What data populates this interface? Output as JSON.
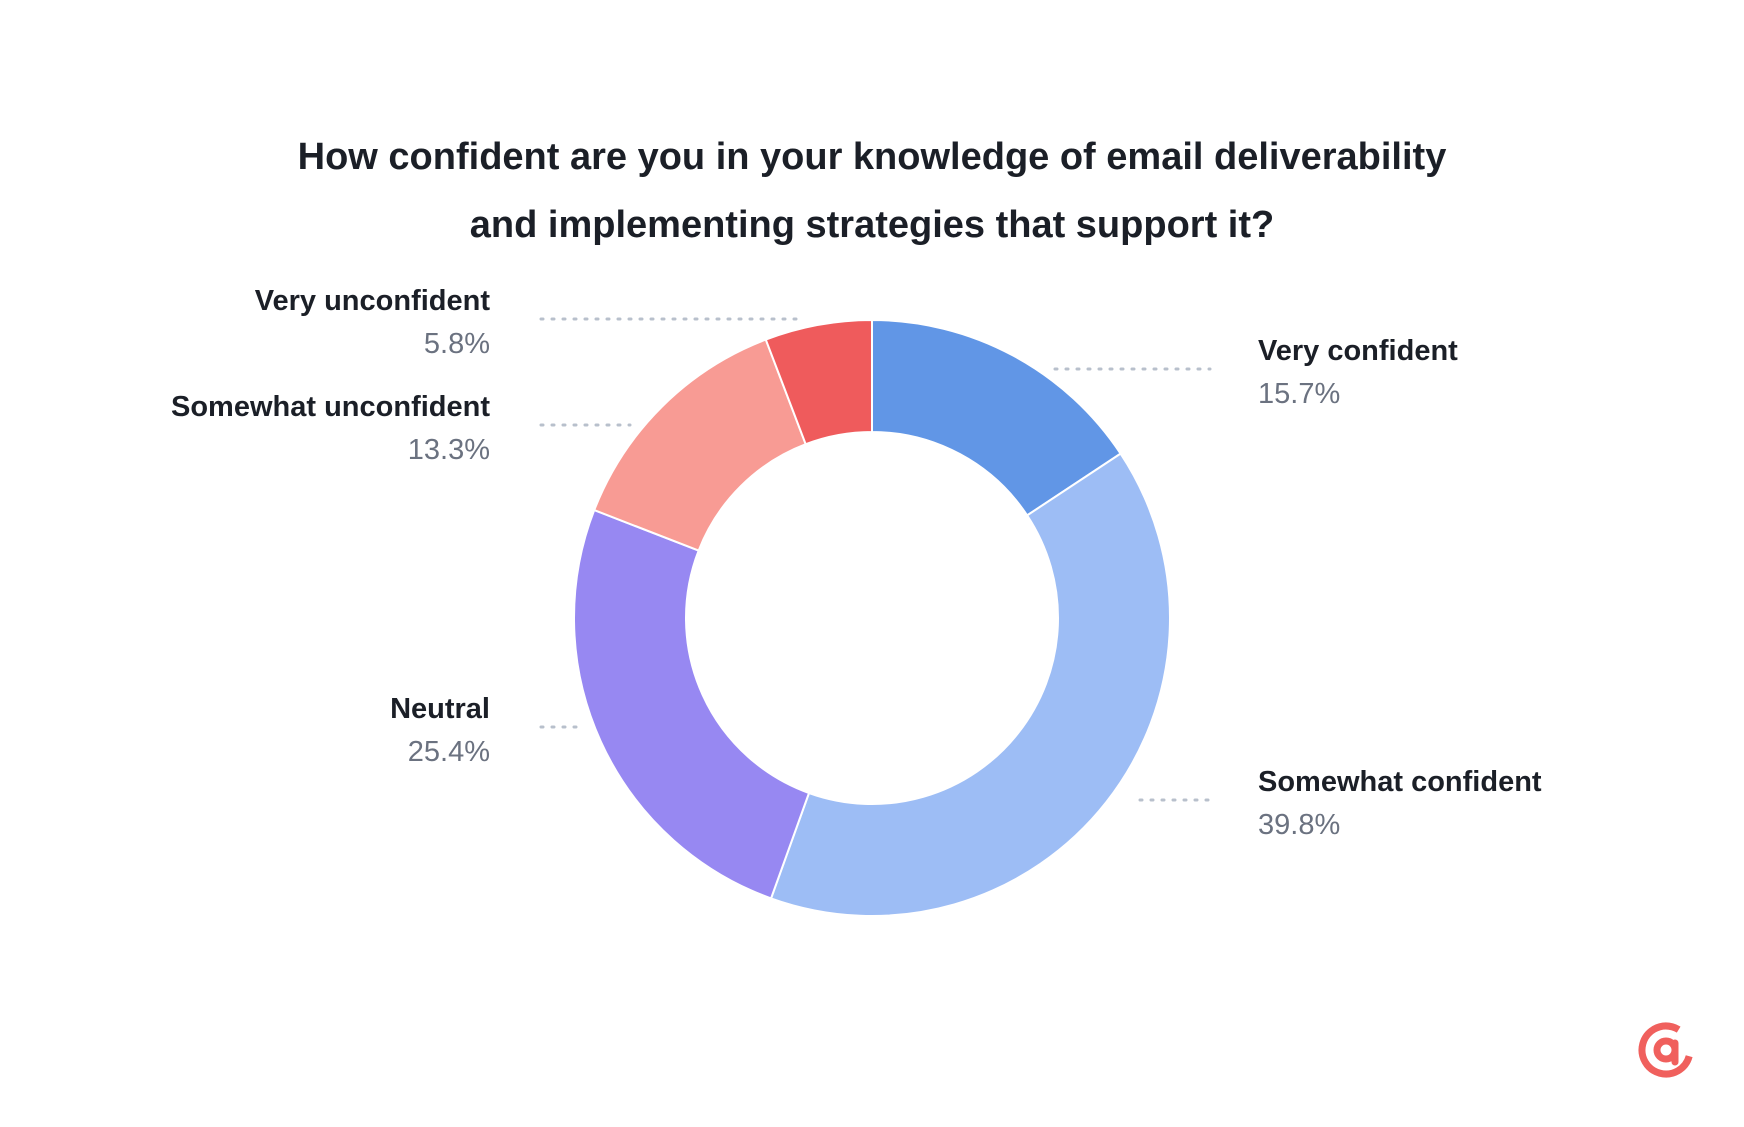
{
  "chart_data": {
    "type": "pie",
    "donut": true,
    "title_lines": [
      "How confident are you in your knowledge of email deliverability",
      "and implementing strategies that support it?"
    ],
    "slices": [
      {
        "label": "Very confident",
        "value": 15.7,
        "value_label": "15.7%",
        "color": "#6196e6"
      },
      {
        "label": "Somewhat confident",
        "value": 39.8,
        "value_label": "39.8%",
        "color": "#9dbdf5"
      },
      {
        "label": "Neutral",
        "value": 25.4,
        "value_label": "25.4%",
        "color": "#9788f2"
      },
      {
        "label": "Somewhat unconfident",
        "value": 13.3,
        "value_label": "13.3%",
        "color": "#f89b94"
      },
      {
        "label": "Very unconfident",
        "value": 5.8,
        "value_label": "5.8%",
        "color": "#ef5b5c"
      }
    ]
  },
  "logo": {
    "name": "at-sign-icon",
    "color": "#f0605d"
  }
}
